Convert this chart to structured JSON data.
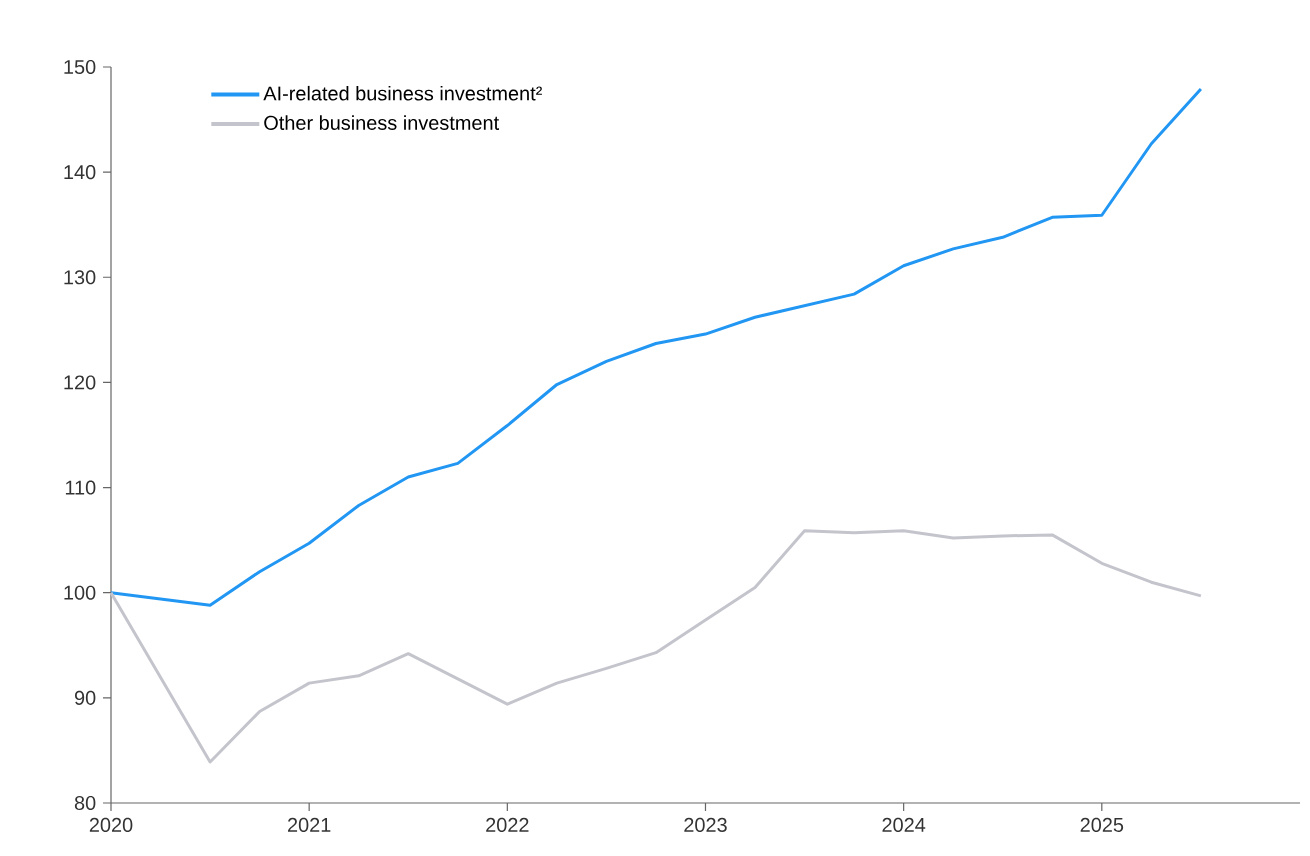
{
  "chart_data": {
    "type": "line",
    "x": [
      2020.0,
      2020.5,
      2020.75,
      2021.0,
      2021.25,
      2021.5,
      2021.75,
      2022.0,
      2022.25,
      2022.5,
      2022.75,
      2023.0,
      2023.25,
      2023.5,
      2023.75,
      2024.0,
      2024.25,
      2024.5,
      2024.75,
      2025.0,
      2025.25,
      2025.5
    ],
    "series": [
      {
        "name": "AI-related business investment²",
        "color": "#2196f3",
        "values": [
          100,
          98.8,
          102.0,
          104.7,
          108.3,
          111.0,
          112.3,
          115.9,
          119.8,
          122.0,
          123.7,
          124.6,
          126.2,
          127.3,
          128.4,
          131.1,
          132.7,
          133.8,
          135.7,
          135.9,
          142.7,
          147.9
        ]
      },
      {
        "name": "Other business investment",
        "color": "#c4c4cc",
        "values": [
          100,
          83.9,
          88.7,
          91.4,
          92.1,
          94.2,
          91.8,
          89.4,
          91.4,
          92.8,
          94.3,
          97.4,
          100.5,
          105.9,
          105.7,
          105.9,
          105.2,
          105.4,
          105.5,
          102.8,
          101.0,
          99.7
        ]
      }
    ],
    "xlim": [
      2020,
      2026
    ],
    "ylim": [
      80,
      150
    ],
    "xticks": [
      2020,
      2021,
      2022,
      2023,
      2024,
      2025
    ],
    "yticks": [
      80,
      90,
      100,
      110,
      120,
      130,
      140,
      150
    ],
    "legend": "top left"
  }
}
